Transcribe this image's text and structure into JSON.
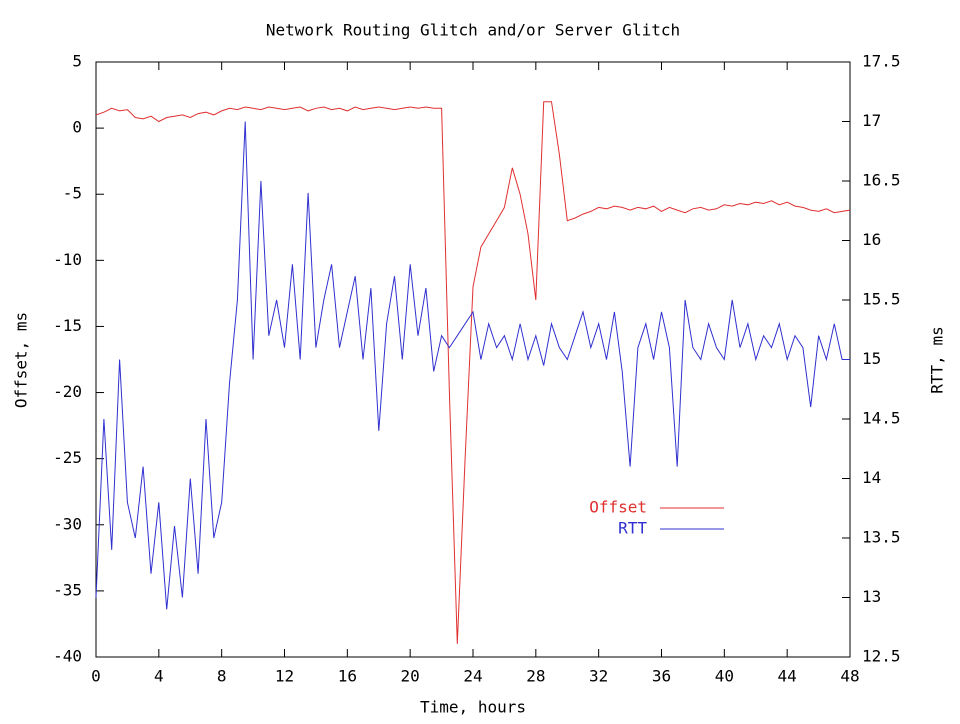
{
  "chart_data": {
    "type": "line",
    "title": "Network Routing Glitch and/or Server Glitch",
    "xlabel": "Time, hours",
    "ylabel": "Offset, ms",
    "y2label": "RTT, ms",
    "xlim": [
      0,
      48
    ],
    "xticks": [
      0,
      4,
      8,
      12,
      16,
      20,
      24,
      28,
      32,
      36,
      40,
      44,
      48
    ],
    "ylim": [
      -40,
      5
    ],
    "yticks": [
      -40,
      -35,
      -30,
      -25,
      -20,
      -15,
      -10,
      -5,
      0,
      5
    ],
    "y2lim": [
      12.5,
      17.5
    ],
    "y2ticks": [
      12.5,
      13,
      13.5,
      14,
      14.5,
      15,
      15.5,
      16,
      16.5,
      17,
      17.5
    ],
    "legend": "lower right",
    "x": [
      0,
      0.5,
      1,
      1.5,
      2,
      2.5,
      3,
      3.5,
      4,
      4.5,
      5,
      5.5,
      6,
      6.5,
      7,
      7.5,
      8,
      8.5,
      9,
      9.5,
      10,
      10.5,
      11,
      11.5,
      12,
      12.5,
      13,
      13.5,
      14,
      14.5,
      15,
      15.5,
      16,
      16.5,
      17,
      17.5,
      18,
      18.5,
      19,
      19.5,
      20,
      20.5,
      21,
      21.5,
      22,
      22.5,
      23,
      23.5,
      24,
      24.5,
      25,
      25.5,
      26,
      26.5,
      27,
      27.5,
      28,
      28.5,
      29,
      29.5,
      30,
      30.5,
      31,
      31.5,
      32,
      32.5,
      33,
      33.5,
      34,
      34.5,
      35,
      35.5,
      36,
      36.5,
      37,
      37.5,
      38,
      38.5,
      39,
      39.5,
      40,
      40.5,
      41,
      41.5,
      42,
      42.5,
      43,
      43.5,
      44,
      44.5,
      45,
      45.5,
      46,
      46.5,
      47,
      47.5,
      48
    ],
    "series": [
      {
        "name": "Offset",
        "color": "#e03030",
        "values": [
          1,
          1.2,
          1.5,
          1.3,
          1.4,
          0.8,
          0.7,
          0.9,
          0.5,
          0.8,
          0.9,
          1.0,
          0.8,
          1.1,
          1.2,
          1.0,
          1.3,
          1.5,
          1.4,
          1.6,
          1.5,
          1.4,
          1.6,
          1.5,
          1.4,
          1.5,
          1.6,
          1.3,
          1.5,
          1.6,
          1.4,
          1.5,
          1.3,
          1.6,
          1.4,
          1.5,
          1.6,
          1.5,
          1.4,
          1.5,
          1.6,
          1.5,
          1.6,
          1.5,
          1.5,
          -20,
          -39,
          -25,
          -12,
          -9,
          -8,
          -7,
          -6,
          -3,
          -5,
          -8,
          -13,
          2,
          2,
          -2,
          -7,
          -6.8,
          -6.5,
          -6.3,
          -6,
          -6.1,
          -5.9,
          -6,
          -6.2,
          -6,
          -6.1,
          -5.9,
          -6.3,
          -6,
          -6.2,
          -6.4,
          -6.1,
          -6,
          -6.2,
          -6.1,
          -5.8,
          -5.9,
          -5.7,
          -5.8,
          -5.6,
          -5.7,
          -5.5,
          -5.8,
          -5.6,
          -5.9,
          -6,
          -6.2,
          -6.3,
          -6.1,
          -6.4,
          -6.3,
          -6.2
        ]
      },
      {
        "name": "RTT",
        "color": "#3030d0",
        "axis": "y2",
        "values": [
          13,
          14.5,
          13.4,
          15,
          13.8,
          13.5,
          14.1,
          13.2,
          13.8,
          12.9,
          13.6,
          13,
          14,
          13.2,
          14.5,
          13.5,
          13.8,
          14.8,
          15.5,
          17,
          15,
          16.5,
          15.2,
          15.5,
          15.1,
          15.8,
          15,
          16.4,
          15.1,
          15.5,
          15.8,
          15.1,
          15.4,
          15.7,
          15,
          15.6,
          14.4,
          15.3,
          15.7,
          15,
          15.8,
          15.2,
          15.6,
          14.9,
          15.2,
          15.1,
          15.2,
          15.3,
          15.4,
          15,
          15.3,
          15.1,
          15.2,
          15,
          15.3,
          15,
          15.2,
          14.95,
          15.3,
          15.1,
          15,
          15.2,
          15.4,
          15.1,
          15.3,
          15,
          15.4,
          14.9,
          14.1,
          15.1,
          15.3,
          15,
          15.4,
          15.1,
          14.1,
          15.5,
          15.1,
          15,
          15.3,
          15.1,
          15,
          15.5,
          15.1,
          15.3,
          15,
          15.2,
          15.1,
          15.3,
          15,
          15.2,
          15.1,
          14.6,
          15.2,
          15,
          15.3,
          15,
          15
        ]
      }
    ]
  }
}
